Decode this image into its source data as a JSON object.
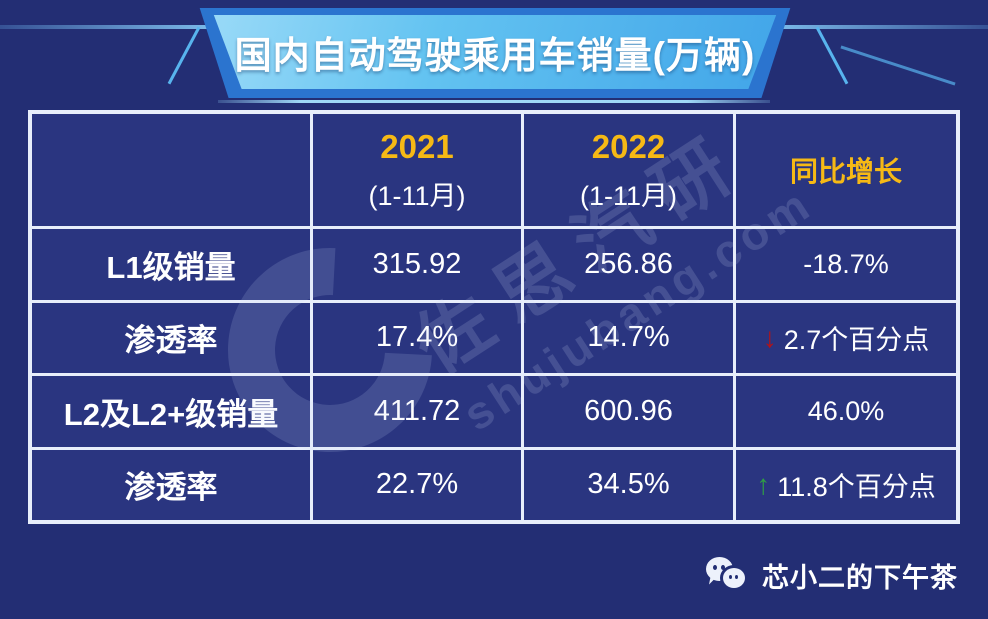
{
  "banner": {
    "title": "国内自动驾驶乘用车销量(万辆)"
  },
  "watermark": {
    "logo_glyph": "C",
    "text_cn": "佐思汽研",
    "text_en": "shujubang.com"
  },
  "table": {
    "header": {
      "blank": "",
      "col2021": {
        "year": "2021",
        "period": "(1-11月)"
      },
      "col2022": {
        "year": "2022",
        "period": "(1-11月)"
      },
      "yoy": "同比增长"
    },
    "rows": [
      {
        "label": "L1级销量",
        "y2021": "315.92",
        "y2022": "256.86",
        "yoy": "-18.7%",
        "yoy_arrow": "",
        "yoy_dir": "none"
      },
      {
        "label": "渗透率",
        "y2021": "17.4%",
        "y2022": "14.7%",
        "yoy": "2.7个百分点",
        "yoy_arrow": "↓",
        "yoy_dir": "down"
      },
      {
        "label": "L2及L2+级销量",
        "y2021": "411.72",
        "y2022": "600.96",
        "yoy": "46.0%",
        "yoy_arrow": "",
        "yoy_dir": "none"
      },
      {
        "label": "渗透率",
        "y2021": "22.7%",
        "y2022": "34.5%",
        "yoy": "11.8个百分点",
        "yoy_arrow": "↑",
        "yoy_dir": "up"
      }
    ]
  },
  "footer": {
    "account": "芯小二的下午茶",
    "icon": "wechat"
  },
  "colors": {
    "page-bg": "#232e74",
    "cell-bg": "#2a3580",
    "table-border": "#e8eefb",
    "banner-outer": "#2b74cf",
    "banner-light": "#5bc0f0",
    "accent-yellow": "#f6b915",
    "down-red": "#b31217",
    "up-green": "#2f9e44",
    "text-white": "#ffffff"
  },
  "chart_data": {
    "type": "table",
    "title": "国内自动驾驶乘用车销量(万辆)",
    "unit": "万辆",
    "columns": [
      "",
      "2021 (1-11月)",
      "2022 (1-11月)",
      "同比增长"
    ],
    "rows": [
      [
        "L1级销量",
        315.92,
        256.86,
        "-18.7%"
      ],
      [
        "渗透率",
        "17.4%",
        "14.7%",
        "下降2.7个百分点"
      ],
      [
        "L2及L2+级销量",
        411.72,
        600.96,
        "46.0%"
      ],
      [
        "渗透率",
        "22.7%",
        "34.5%",
        "上升11.8个百分点"
      ]
    ],
    "source_watermark": "佐思汽研 shujubang.com",
    "publisher": "芯小二的下午茶"
  }
}
